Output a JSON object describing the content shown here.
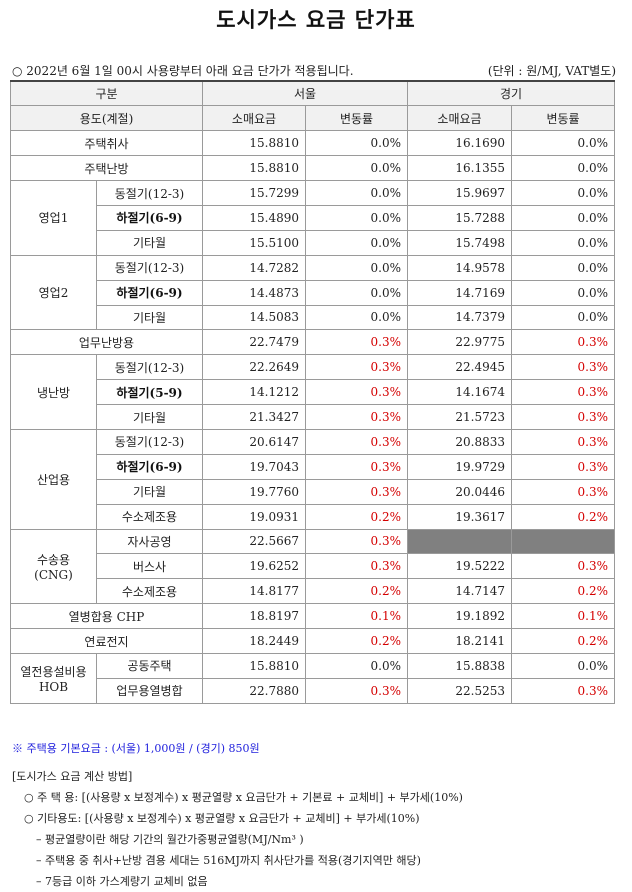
{
  "title": "도시가스 요금 단가표",
  "notice": "○ 2022년 6월 1일 00시 사용량부터 아래 요금 단가가 적용됩니다.",
  "unit": "(단위 : 원/MJ, VAT별도)",
  "header": {
    "category": "구분",
    "usage": "용도(계절)",
    "seoul": "서울",
    "gyeonggi": "경기",
    "retail": "소매요금",
    "change": "변동률"
  },
  "rows": [
    {
      "group": "주택취사",
      "sub": "",
      "seoul_price": "15.8810",
      "seoul_change": "0.0%",
      "gg_price": "16.1690",
      "gg_change": "0.0%"
    },
    {
      "group": "주택난방",
      "sub": "",
      "seoul_price": "15.8810",
      "seoul_change": "0.0%",
      "gg_price": "16.1355",
      "gg_change": "0.0%"
    },
    {
      "group": "영업1",
      "sub": "동절기(12-3)",
      "seoul_price": "15.7299",
      "seoul_change": "0.0%",
      "gg_price": "15.9697",
      "gg_change": "0.0%"
    },
    {
      "group": "",
      "sub": "하절기(6-9)",
      "seoul_price": "15.4890",
      "seoul_change": "0.0%",
      "gg_price": "15.7288",
      "gg_change": "0.0%"
    },
    {
      "group": "",
      "sub": "기타월",
      "seoul_price": "15.5100",
      "seoul_change": "0.0%",
      "gg_price": "15.7498",
      "gg_change": "0.0%"
    },
    {
      "group": "영업2",
      "sub": "동절기(12-3)",
      "seoul_price": "14.7282",
      "seoul_change": "0.0%",
      "gg_price": "14.9578",
      "gg_change": "0.0%"
    },
    {
      "group": "",
      "sub": "하절기(6-9)",
      "seoul_price": "14.4873",
      "seoul_change": "0.0%",
      "gg_price": "14.7169",
      "gg_change": "0.0%"
    },
    {
      "group": "",
      "sub": "기타월",
      "seoul_price": "14.5083",
      "seoul_change": "0.0%",
      "gg_price": "14.7379",
      "gg_change": "0.0%"
    },
    {
      "group": "업무난방용",
      "sub": "",
      "seoul_price": "22.7479",
      "seoul_change": "0.3%",
      "gg_price": "22.9775",
      "gg_change": "0.3%"
    },
    {
      "group": "냉난방",
      "sub": "동절기(12-3)",
      "seoul_price": "22.2649",
      "seoul_change": "0.3%",
      "gg_price": "22.4945",
      "gg_change": "0.3%"
    },
    {
      "group": "",
      "sub": "하절기(5-9)",
      "seoul_price": "14.1212",
      "seoul_change": "0.3%",
      "gg_price": "14.1674",
      "gg_change": "0.3%"
    },
    {
      "group": "",
      "sub": "기타월",
      "seoul_price": "21.3427",
      "seoul_change": "0.3%",
      "gg_price": "21.5723",
      "gg_change": "0.3%"
    },
    {
      "group": "산업용",
      "sub": "동절기(12-3)",
      "seoul_price": "20.6147",
      "seoul_change": "0.3%",
      "gg_price": "20.8833",
      "gg_change": "0.3%"
    },
    {
      "group": "",
      "sub": "하절기(6-9)",
      "seoul_price": "19.7043",
      "seoul_change": "0.3%",
      "gg_price": "19.9729",
      "gg_change": "0.3%"
    },
    {
      "group": "",
      "sub": "기타월",
      "seoul_price": "19.7760",
      "seoul_change": "0.3%",
      "gg_price": "20.0446",
      "gg_change": "0.3%"
    },
    {
      "group": "",
      "sub": "수소제조용",
      "seoul_price": "19.0931",
      "seoul_change": "0.2%",
      "gg_price": "19.3617",
      "gg_change": "0.2%"
    },
    {
      "group": "수송용",
      "group2": "(CNG)",
      "sub": "자사공영",
      "seoul_price": "22.5667",
      "seoul_change": "0.3%",
      "gg_price": "",
      "gg_change": ""
    },
    {
      "group": "",
      "sub": "버스사",
      "seoul_price": "19.6252",
      "seoul_change": "0.3%",
      "gg_price": "19.5222",
      "gg_change": "0.3%"
    },
    {
      "group": "",
      "sub": "수소제조용",
      "seoul_price": "14.8177",
      "seoul_change": "0.2%",
      "gg_price": "14.7147",
      "gg_change": "0.2%"
    },
    {
      "group": "열병합용 CHP",
      "sub": "",
      "seoul_price": "18.8197",
      "seoul_change": "0.1%",
      "gg_price": "19.1892",
      "gg_change": "0.1%"
    },
    {
      "group": "연료전지",
      "sub": "",
      "seoul_price": "18.2449",
      "seoul_change": "0.2%",
      "gg_price": "18.2141",
      "gg_change": "0.2%"
    },
    {
      "group": "열전용설비용",
      "group2": "HOB",
      "sub": "공동주택",
      "seoul_price": "15.8810",
      "seoul_change": "0.0%",
      "gg_price": "15.8838",
      "gg_change": "0.0%"
    },
    {
      "group": "",
      "sub": "업무용열병합",
      "seoul_price": "22.7880",
      "seoul_change": "0.3%",
      "gg_price": "22.5253",
      "gg_change": "0.3%"
    }
  ],
  "footnote": "※ 주택용 기본요금 : (서울) 1,000원 / (경기) 850원",
  "calc": {
    "title": "[도시가스 요금 계산 방법]",
    "line1": "○ 주 택 용: [(사용량 x 보정계수) x 평균열량 x 요금단가 + 기본료 + 교체비] + 부가세(10%)",
    "line2": "○ 기타용도: [(사용량 x 보정계수) x 평균열량 x 요금단가 + 교체비] + 부가세(10%)",
    "line3": "– 평균열량이란 해당 기간의 월간가중평균열량(MJ/Nm³ )",
    "line4": "– 주택용 중 취사+난방 겸용 세대는 516MJ까지 취사단가를 적용(경기지역만 해당)",
    "line5": "– 7등급 이하 가스계량기 교체비 없음"
  },
  "colors": {
    "increase": "#d40000",
    "footnote": "#2222dd",
    "blank_cell": "#808080"
  }
}
